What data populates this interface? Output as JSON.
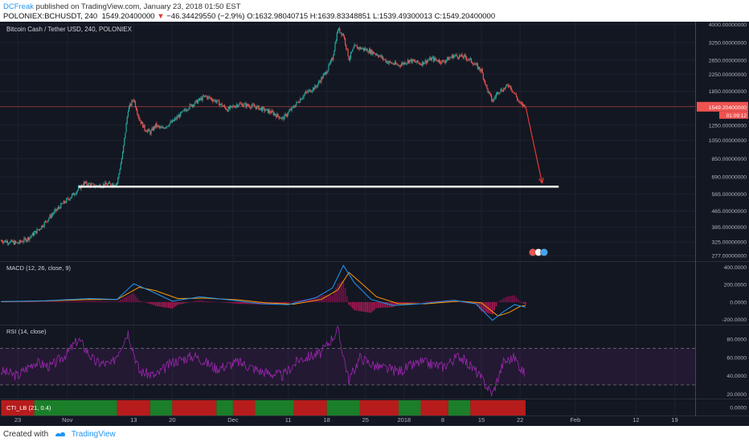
{
  "header": {
    "author": "DCFreak",
    "published": "published on TradingView.com, January 23, 2018 01:50 EST",
    "symbol": "POLONIEX:BCHUSDT, 240",
    "last": "1549.20400000",
    "change_arrow": "▼",
    "change": "−46.34429550 (−2.9%)",
    "ohlc": "O:1632.98040715 H:1639.83348851 L:1539.49300013 C:1549.20400000"
  },
  "colors": {
    "background": "#131722",
    "up": "#26a69a",
    "down": "#ef5350",
    "macd": "#2196f3",
    "signal": "#ff9800",
    "rsi": "#9c27b0",
    "support": "#ffffff",
    "arrow": "#e53935"
  },
  "chart_data": [
    {
      "type": "candlestick",
      "title": "Bitcoin Cash / Tether USD, 240, POLONIEX",
      "scale": "log",
      "ylim": [
        260,
        4100
      ],
      "y_ticks": [
        {
          "v": 4000,
          "label": "4000.00000000"
        },
        {
          "v": 3250,
          "label": "3250.00000000"
        },
        {
          "v": 2650,
          "label": "2650.00000000"
        },
        {
          "v": 2250,
          "label": "2250.00000000"
        },
        {
          "v": 1850,
          "label": "1850.00000000"
        },
        {
          "v": 1250,
          "label": "1250.00000000"
        },
        {
          "v": 1050,
          "label": "1050.00000000"
        },
        {
          "v": 850,
          "label": "850.00000000"
        },
        {
          "v": 690,
          "label": "690.00000000"
        },
        {
          "v": 565,
          "label": "565.00000000"
        },
        {
          "v": 465,
          "label": "465.00000000"
        },
        {
          "v": 385,
          "label": "385.00000000"
        },
        {
          "v": 325,
          "label": "325.00000000"
        },
        {
          "v": 277,
          "label": "277.00000000"
        }
      ],
      "last_price_label": "1549.20400000",
      "countdown_label": "01:09:12",
      "x_ticks": [
        {
          "date": "Oct 23",
          "label": "23"
        },
        {
          "date": "Nov 1",
          "label": "Nov"
        },
        {
          "date": "Nov 13",
          "label": "13"
        },
        {
          "date": "Nov 20",
          "label": "20"
        },
        {
          "date": "Dec 1",
          "label": "Dec"
        },
        {
          "date": "Dec 11",
          "label": "11"
        },
        {
          "date": "Dec 18",
          "label": "18"
        },
        {
          "date": "Dec 25",
          "label": "25"
        },
        {
          "date": "Jan 1",
          "label": "2018"
        },
        {
          "date": "Jan 8",
          "label": "8"
        },
        {
          "date": "Jan 15",
          "label": "15"
        },
        {
          "date": "Jan 22",
          "label": "22"
        },
        {
          "date": "Feb 1",
          "label": "Feb"
        },
        {
          "date": "Feb 12",
          "label": "12"
        },
        {
          "date": "Feb 19",
          "label": "19"
        }
      ],
      "price_path": [
        [
          "Oct 20",
          330
        ],
        [
          "Oct 23",
          320
        ],
        [
          "Oct 25",
          340
        ],
        [
          "Oct 27",
          380
        ],
        [
          "Oct 29",
          440
        ],
        [
          "Oct 31",
          500
        ],
        [
          "Nov 2",
          560
        ],
        [
          "Nov 4",
          640
        ],
        [
          "Nov 6",
          620
        ],
        [
          "Nov 8",
          630
        ],
        [
          "Nov 10",
          640
        ],
        [
          "Nov 11",
          900
        ],
        [
          "Nov 12",
          1500
        ],
        [
          "Nov 13",
          1700
        ],
        [
          "Nov 14",
          1350
        ],
        [
          "Nov 15",
          1200
        ],
        [
          "Nov 16",
          1150
        ],
        [
          "Nov 17",
          1250
        ],
        [
          "Nov 18",
          1200
        ],
        [
          "Nov 20",
          1300
        ],
        [
          "Nov 23",
          1550
        ],
        [
          "Nov 26",
          1750
        ],
        [
          "Nov 28",
          1650
        ],
        [
          "Nov 30",
          1500
        ],
        [
          "Dec 2",
          1600
        ],
        [
          "Dec 5",
          1550
        ],
        [
          "Dec 8",
          1450
        ],
        [
          "Dec 10",
          1350
        ],
        [
          "Dec 12",
          1550
        ],
        [
          "Dec 14",
          1800
        ],
        [
          "Dec 16",
          1950
        ],
        [
          "Dec 18",
          2350
        ],
        [
          "Dec 19",
          2700
        ],
        [
          "Dec 20",
          3800
        ],
        [
          "Dec 21",
          3550
        ],
        [
          "Dec 22",
          2700
        ],
        [
          "Dec 23",
          3100
        ],
        [
          "Dec 25",
          3000
        ],
        [
          "Dec 27",
          2850
        ],
        [
          "Dec 29",
          2600
        ],
        [
          "Dec 31",
          2500
        ],
        [
          "Jan 2",
          2650
        ],
        [
          "Jan 4",
          2550
        ],
        [
          "Jan 6",
          2700
        ],
        [
          "Jan 8",
          2600
        ],
        [
          "Jan 10",
          2800
        ],
        [
          "Jan 12",
          2750
        ],
        [
          "Jan 13",
          2650
        ],
        [
          "Jan 15",
          2350
        ],
        [
          "Jan 16",
          1900
        ],
        [
          "Jan 17",
          1650
        ],
        [
          "Jan 18",
          1850
        ],
        [
          "Jan 19",
          1900
        ],
        [
          "Jan 20",
          2000
        ],
        [
          "Jan 21",
          1800
        ],
        [
          "Jan 22",
          1600
        ],
        [
          "Jan 23",
          1549.2
        ]
      ],
      "annotations": {
        "support_line": {
          "value": 615,
          "from": "Nov 3",
          "to": "Jan 29"
        },
        "arrow": {
          "from": [
            "Jan 23",
            1560
          ],
          "to": [
            "Jan 26",
            640
          ]
        }
      }
    },
    {
      "type": "line",
      "title": "MACD (12, 26, close, 9)",
      "ylim": [
        -260,
        460
      ],
      "y_ticks": [
        {
          "v": 400,
          "label": "400.0000"
        },
        {
          "v": 200,
          "label": "200.0000"
        },
        {
          "v": 0,
          "label": "0.0000"
        },
        {
          "v": -200,
          "label": "-200.0000"
        }
      ],
      "macd_path": [
        [
          "Oct 20",
          5
        ],
        [
          "Oct 28",
          15
        ],
        [
          "Nov 5",
          40
        ],
        [
          "Nov 10",
          30
        ],
        [
          "Nov 13",
          210
        ],
        [
          "Nov 16",
          130
        ],
        [
          "Nov 20",
          10
        ],
        [
          "Nov 25",
          60
        ],
        [
          "Dec 1",
          20
        ],
        [
          "Dec 6",
          -20
        ],
        [
          "Dec 11",
          -30
        ],
        [
          "Dec 16",
          50
        ],
        [
          "Dec 19",
          160
        ],
        [
          "Dec 21",
          420
        ],
        [
          "Dec 23",
          220
        ],
        [
          "Dec 26",
          30
        ],
        [
          "Dec 30",
          -40
        ],
        [
          "Jan 4",
          -20
        ],
        [
          "Jan 10",
          20
        ],
        [
          "Jan 14",
          -20
        ],
        [
          "Jan 17",
          -210
        ],
        [
          "Jan 19",
          -110
        ],
        [
          "Jan 21",
          -30
        ],
        [
          "Jan 23",
          -60
        ]
      ],
      "signal_path": [
        [
          "Oct 20",
          3
        ],
        [
          "Oct 28",
          12
        ],
        [
          "Nov 5",
          30
        ],
        [
          "Nov 10",
          28
        ],
        [
          "Nov 14",
          170
        ],
        [
          "Nov 17",
          130
        ],
        [
          "Nov 21",
          40
        ],
        [
          "Nov 26",
          45
        ],
        [
          "Dec 2",
          25
        ],
        [
          "Dec 7",
          -10
        ],
        [
          "Dec 12",
          -25
        ],
        [
          "Dec 17",
          30
        ],
        [
          "Dec 20",
          140
        ],
        [
          "Dec 22",
          340
        ],
        [
          "Dec 24",
          230
        ],
        [
          "Dec 27",
          60
        ],
        [
          "Dec 31",
          -20
        ],
        [
          "Jan 5",
          -20
        ],
        [
          "Jan 11",
          10
        ],
        [
          "Jan 15",
          -10
        ],
        [
          "Jan 18",
          -160
        ],
        [
          "Jan 20",
          -120
        ],
        [
          "Jan 22",
          -50
        ],
        [
          "Jan 23",
          -40
        ]
      ]
    },
    {
      "type": "line",
      "title": "RSI (14, close)",
      "ylim": [
        15,
        95
      ],
      "y_ticks": [
        {
          "v": 80,
          "label": "80.0000"
        },
        {
          "v": 60,
          "label": "60.0000"
        },
        {
          "v": 40,
          "label": "40.0000"
        },
        {
          "v": 20,
          "label": "20.0000"
        }
      ],
      "bands": [
        30,
        70
      ],
      "rsi_path": [
        [
          "Oct 20",
          45
        ],
        [
          "Oct 23",
          40
        ],
        [
          "Oct 26",
          55
        ],
        [
          "Oct 29",
          50
        ],
        [
          "Nov 1",
          65
        ],
        [
          "Nov 3",
          80
        ],
        [
          "Nov 6",
          55
        ],
        [
          "Nov 9",
          52
        ],
        [
          "Nov 12",
          88
        ],
        [
          "Nov 14",
          45
        ],
        [
          "Nov 17",
          40
        ],
        [
          "Nov 20",
          55
        ],
        [
          "Nov 24",
          62
        ],
        [
          "Nov 28",
          48
        ],
        [
          "Dec 2",
          55
        ],
        [
          "Dec 6",
          45
        ],
        [
          "Dec 10",
          40
        ],
        [
          "Dec 13",
          58
        ],
        [
          "Dec 17",
          65
        ],
        [
          "Dec 20",
          90
        ],
        [
          "Dec 22",
          35
        ],
        [
          "Dec 24",
          60
        ],
        [
          "Dec 27",
          50
        ],
        [
          "Dec 31",
          45
        ],
        [
          "Jan 4",
          55
        ],
        [
          "Jan 8",
          50
        ],
        [
          "Jan 11",
          62
        ],
        [
          "Jan 14",
          45
        ],
        [
          "Jan 17",
          20
        ],
        [
          "Jan 19",
          55
        ],
        [
          "Jan 21",
          60
        ],
        [
          "Jan 23",
          40
        ]
      ]
    },
    {
      "type": "heatmap",
      "title": "CTI_LB (21, 0.4)",
      "y_ticks": [
        {
          "v": 0,
          "label": "0.0000"
        }
      ],
      "colors": {
        "pos": "#1b7f2a",
        "neg": "#b71c1c"
      },
      "segments": [
        [
          "Oct 20",
          "Oct 26",
          "neg"
        ],
        [
          "Oct 26",
          "Nov 10",
          "pos"
        ],
        [
          "Nov 10",
          "Nov 16",
          "neg"
        ],
        [
          "Nov 16",
          "Nov 20",
          "pos"
        ],
        [
          "Nov 20",
          "Nov 28",
          "neg"
        ],
        [
          "Nov 28",
          "Dec 1",
          "pos"
        ],
        [
          "Dec 1",
          "Dec 5",
          "neg"
        ],
        [
          "Dec 5",
          "Dec 12",
          "pos"
        ],
        [
          "Dec 12",
          "Dec 18",
          "neg"
        ],
        [
          "Dec 18",
          "Dec 24",
          "pos"
        ],
        [
          "Dec 24",
          "Dec 31",
          "neg"
        ],
        [
          "Dec 31",
          "Jan 4",
          "pos"
        ],
        [
          "Jan 4",
          "Jan 9",
          "neg"
        ],
        [
          "Jan 9",
          "Jan 13",
          "pos"
        ],
        [
          "Jan 13",
          "Jan 23",
          "neg"
        ]
      ]
    }
  ],
  "footer": {
    "created_with": "Created with",
    "brand": "TradingView"
  }
}
